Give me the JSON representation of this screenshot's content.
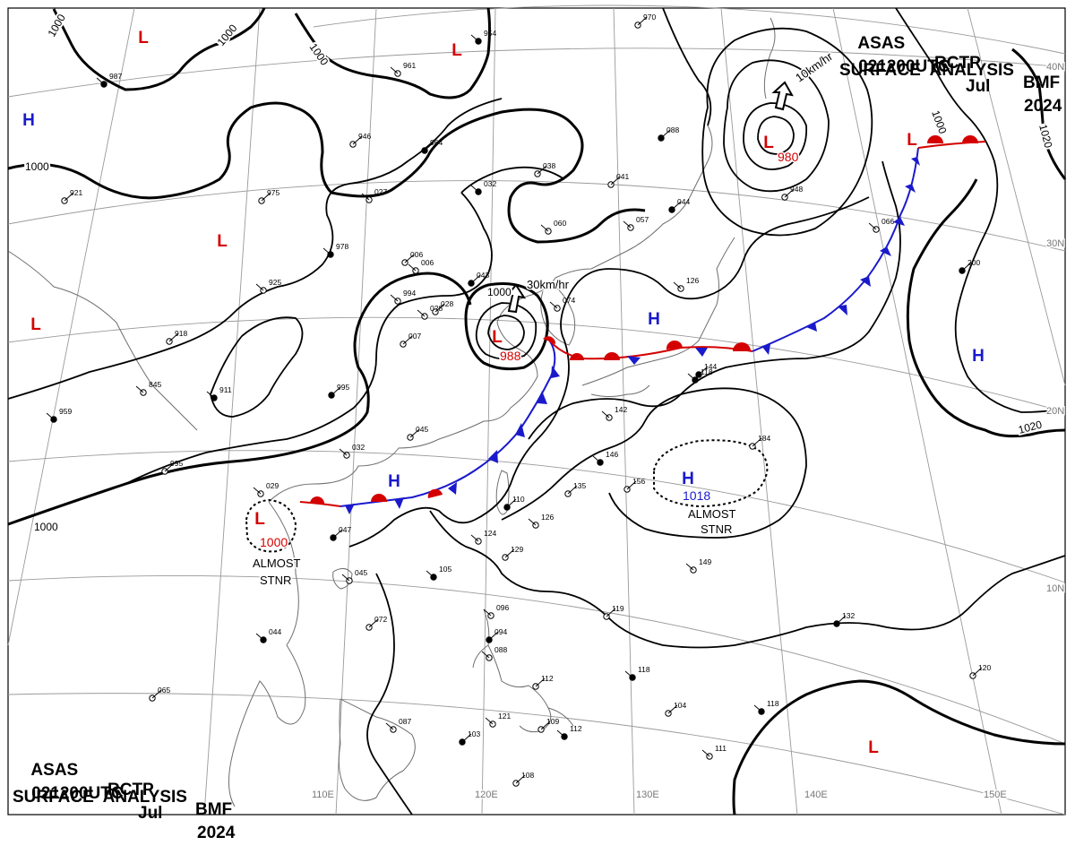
{
  "header_top": {
    "line1": [
      "ASAS",
      "RCTP",
      "BMF"
    ],
    "line2": [
      "021200UTC",
      "Jul",
      "2024"
    ],
    "line3": "SURFACE  ANALYSIS"
  },
  "header_bottom": {
    "line1": [
      "ASAS",
      "RCTP",
      "BMF"
    ],
    "line2": [
      "021200UTC",
      "Jul",
      "2024"
    ],
    "line3": "SURFACE  ANALYSIS"
  },
  "lon_labels": [
    "110E",
    "120E",
    "130E",
    "140E",
    "150E"
  ],
  "lat_labels": [
    "40N",
    "30N",
    "20N",
    "10N"
  ],
  "isobar_labels": [
    "1000",
    "1000",
    "1000",
    "1000",
    "1000",
    "1000",
    "1020",
    "1020",
    "1000"
  ],
  "pressure_centers": [
    {
      "type": "L",
      "value": "988",
      "color": "#d40000"
    },
    {
      "type": "L",
      "value": "980",
      "color": "#d40000"
    },
    {
      "type": "L",
      "value": "1000",
      "color": "#d40000"
    },
    {
      "type": "H",
      "value": "1018",
      "color": "#1a1acc"
    },
    {
      "type": "H",
      "value": "",
      "color": "#1a1acc"
    },
    {
      "type": "H",
      "value": "",
      "color": "#1a1acc"
    },
    {
      "type": "H",
      "value": "",
      "color": "#1a1acc"
    },
    {
      "type": "H",
      "value": "",
      "color": "#1a1acc"
    },
    {
      "type": "L",
      "value": "",
      "color": "#d40000"
    },
    {
      "type": "L",
      "value": "",
      "color": "#d40000"
    },
    {
      "type": "L",
      "value": "",
      "color": "#d40000"
    },
    {
      "type": "L",
      "value": "",
      "color": "#d40000"
    },
    {
      "type": "L",
      "value": "",
      "color": "#d40000"
    },
    {
      "type": "L",
      "value": "",
      "color": "#d40000"
    }
  ],
  "motion_labels": [
    "30km/hr",
    "10km/hr"
  ],
  "annotations": [
    {
      "line1": "ALMOST",
      "line2": "STNR"
    },
    {
      "line1": "ALMOST",
      "line2": "STNR"
    }
  ],
  "station_numbers": [
    "987",
    "946",
    "961",
    "964",
    "027",
    "975",
    "978",
    "006",
    "994",
    "043",
    "028",
    "007",
    "911",
    "918",
    "925",
    "995",
    "032",
    "045",
    "959",
    "995",
    "029",
    "047",
    "045",
    "072",
    "044",
    "065",
    "087",
    "103",
    "121",
    "109",
    "112",
    "108",
    "096",
    "094",
    "088",
    "112",
    "105",
    "129",
    "124",
    "110",
    "126",
    "135",
    "146",
    "156",
    "142",
    "144",
    "126",
    "104",
    "118",
    "119",
    "111",
    "132",
    "149",
    "120",
    "118",
    "184",
    "066",
    "200",
    "060",
    "038",
    "032",
    "041",
    "057",
    "044",
    "006",
    "948",
    "954",
    "970",
    "074",
    "088",
    "845",
    "921",
    "118",
    "028"
  ],
  "colors": {
    "warm_front": "#d40000",
    "cold_front": "#1a1acc",
    "high": "#1a1acc",
    "low": "#d40000",
    "isobar": "#000000",
    "coast": "#6e6e6e"
  }
}
